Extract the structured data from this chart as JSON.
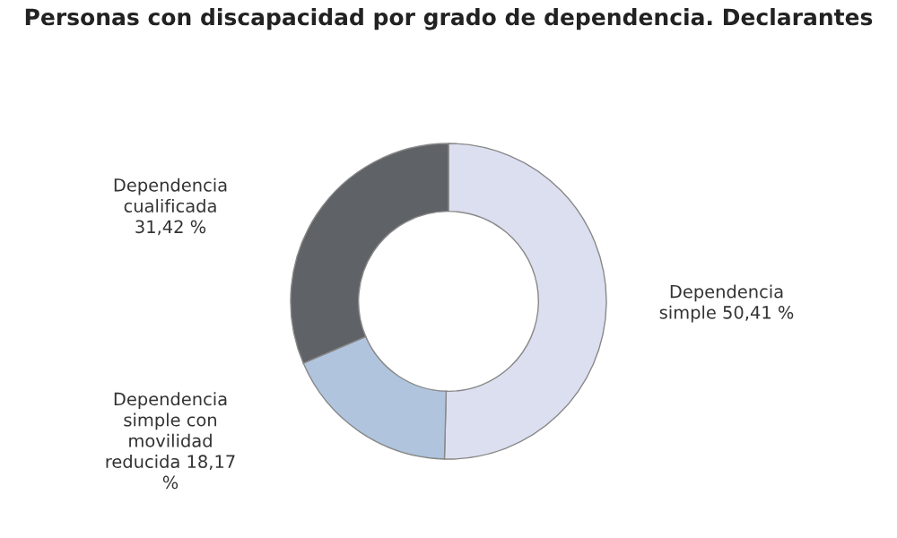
{
  "chart_data": {
    "type": "donut",
    "title": "Personas con discapacidad por grado de dependencia. Declarantes",
    "categories": [
      "Dependencia simple",
      "Dependencia simple con movilidad reducida",
      "Dependencia cualificada"
    ],
    "values": [
      50.41,
      18.17,
      31.42
    ],
    "value_labels": [
      "50,41 %",
      "18,17 %",
      "31,42 %"
    ],
    "colors": [
      "#dcdff0",
      "#b0c4de",
      "#5f6266"
    ]
  }
}
